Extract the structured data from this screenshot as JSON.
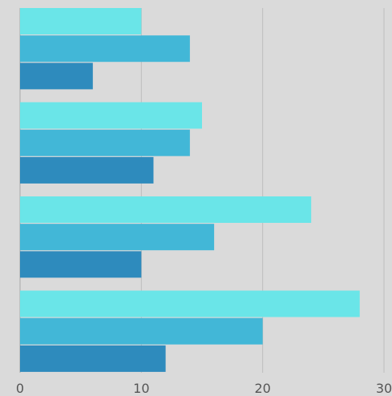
{
  "chart_data": {
    "type": "bar",
    "orientation": "horizontal",
    "grouped": true,
    "categories": [
      "",
      "",
      "",
      ""
    ],
    "series": [
      {
        "color": "#6ae5e8",
        "values": [
          10,
          15,
          24,
          28
        ]
      },
      {
        "color": "#42b7d7",
        "values": [
          14,
          14,
          16,
          20
        ]
      },
      {
        "color": "#2e8bbd",
        "values": [
          6,
          11,
          10,
          12
        ]
      }
    ],
    "xlim": [
      0,
      30
    ],
    "xticks": [
      "0",
      "10",
      "20",
      "30"
    ],
    "grid": "vertical",
    "legend": "none",
    "title": "",
    "xlabel": "",
    "ylabel": ""
  }
}
